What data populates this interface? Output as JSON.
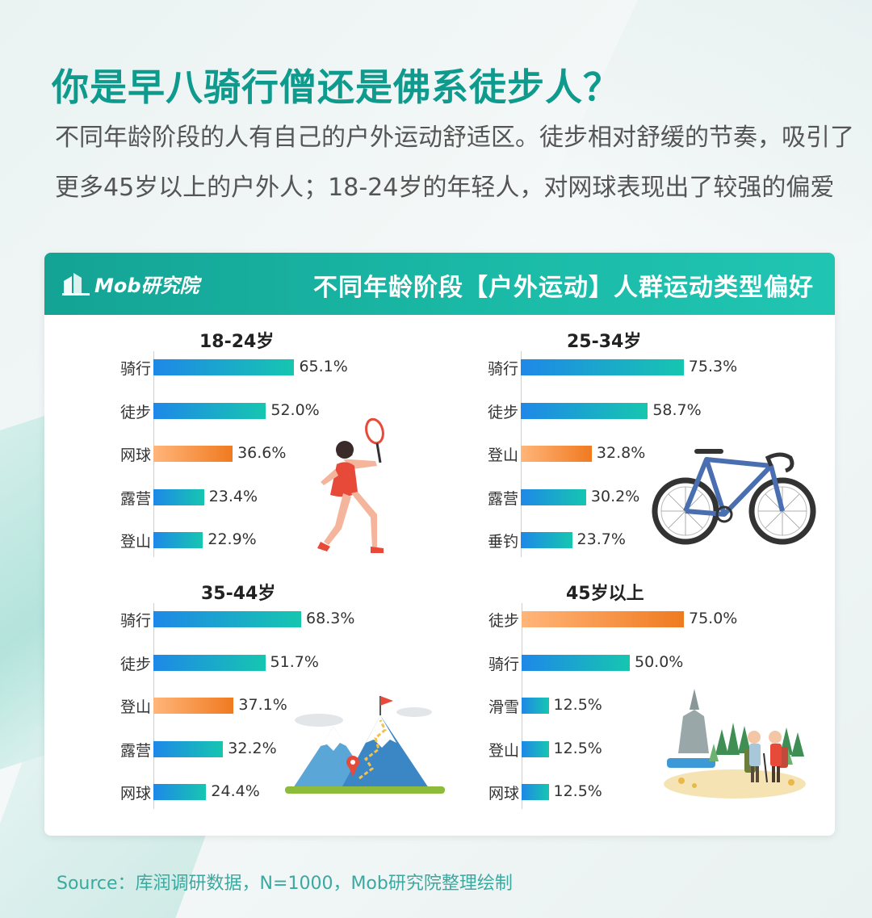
{
  "title": "你是早八骑行僧还是佛系徒步人？",
  "subtitle": "不同年龄阶段的人有自己的户外运动舒适区。徒步相对舒缓的节奏，吸引了更多45岁以上的户外人；18-24岁的年轻人，对网球表现出了较强的偏爱",
  "card": {
    "logo_text": "Mob研究院",
    "title": "不同年龄阶段【户外运动】人群运动类型偏好"
  },
  "source": "Source：库润调研数据，N=1000，Mob研究院整理绘制",
  "colors": {
    "accent": "#0f9a8e",
    "header": "#1bbba8",
    "bar_blue_start": "#1e88e8",
    "bar_blue_end": "#16c6b0",
    "bar_orange_start": "#ffb57a",
    "bar_orange_end": "#f07a20"
  },
  "chart_data": [
    {
      "type": "bar",
      "title": "18-24岁",
      "categories": [
        "骑行",
        "徒步",
        "网球",
        "露营",
        "登山"
      ],
      "values": [
        65.1,
        52.0,
        36.6,
        23.4,
        22.9
      ],
      "value_labels": [
        "65.1%",
        "52.0%",
        "36.6%",
        "23.4%",
        "22.9%"
      ],
      "highlight": [
        false,
        false,
        true,
        false,
        false
      ],
      "illustration": "tennis-player"
    },
    {
      "type": "bar",
      "title": "25-34岁",
      "categories": [
        "骑行",
        "徒步",
        "登山",
        "露营",
        "垂钓"
      ],
      "values": [
        75.3,
        58.7,
        32.8,
        30.2,
        23.7
      ],
      "value_labels": [
        "75.3%",
        "58.7%",
        "32.8%",
        "30.2%",
        "23.7%"
      ],
      "highlight": [
        false,
        false,
        true,
        false,
        false
      ],
      "illustration": "bicycle"
    },
    {
      "type": "bar",
      "title": "35-44岁",
      "categories": [
        "骑行",
        "徒步",
        "登山",
        "露营",
        "网球"
      ],
      "values": [
        68.3,
        51.7,
        37.1,
        32.2,
        24.4
      ],
      "value_labels": [
        "68.3%",
        "51.7%",
        "37.1%",
        "32.2%",
        "24.4%"
      ],
      "highlight": [
        false,
        false,
        true,
        false,
        false
      ],
      "illustration": "mountain"
    },
    {
      "type": "bar",
      "title": "45岁以上",
      "categories": [
        "徒步",
        "骑行",
        "滑雪",
        "登山",
        "网球"
      ],
      "values": [
        75.0,
        50.0,
        12.5,
        12.5,
        12.5
      ],
      "value_labels": [
        "75.0%",
        "50.0%",
        "12.5%",
        "12.5%",
        "12.5%"
      ],
      "highlight": [
        true,
        false,
        false,
        false,
        false
      ],
      "illustration": "hikers"
    }
  ]
}
